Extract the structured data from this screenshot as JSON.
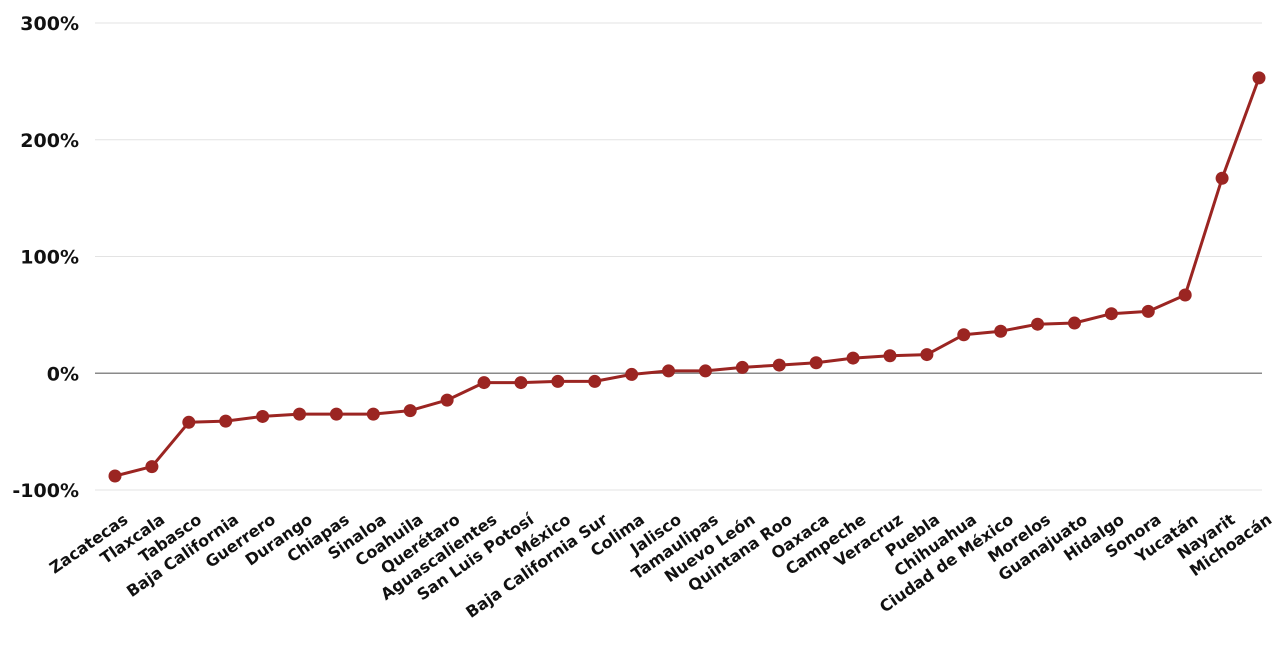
{
  "colors": {
    "line": "#9b2522",
    "title": "#c0281f",
    "grid": "#e3e3e3",
    "zero_line": "#8a8a8a",
    "text": "#111111"
  },
  "chart_data": {
    "type": "line",
    "title": "",
    "xlabel": "",
    "ylabel": "",
    "ylim": [
      -100,
      300
    ],
    "y_ticks": [
      -100,
      0,
      100,
      200,
      300
    ],
    "y_tick_labels": [
      "-100%",
      "0%",
      "100%",
      "200%",
      "300%"
    ],
    "grid": true,
    "legend": "none",
    "categories": [
      "Zacatecas",
      "Tlaxcala",
      "Tabasco",
      "Baja California",
      "Guerrero",
      "Durango",
      "Chiapas",
      "Sinaloa",
      "Coahuila",
      "Querétaro",
      "Aguascalientes",
      "San Luis Potosí",
      "México",
      "Baja California Sur",
      "Colima",
      "Jalisco",
      "Tamaulipas",
      "Nuevo León",
      "Quintana Roo",
      "Oaxaca",
      "Campeche",
      "Veracruz",
      "Puebla",
      "Chihuahua",
      "Ciudad de México",
      "Morelos",
      "Guanajuato",
      "Hidalgo",
      "Sonora",
      "Yucatán",
      "Nayarit",
      "Michoacán"
    ],
    "series": [
      {
        "values": [
          -88,
          -80,
          -42,
          -41,
          -37,
          -35,
          -35,
          -35,
          -32,
          -23,
          -8,
          -8,
          -7,
          -7,
          -1,
          2,
          2,
          5,
          7,
          9,
          13,
          15,
          16,
          33,
          36,
          42,
          43,
          51,
          53,
          67,
          167,
          253
        ]
      }
    ]
  }
}
